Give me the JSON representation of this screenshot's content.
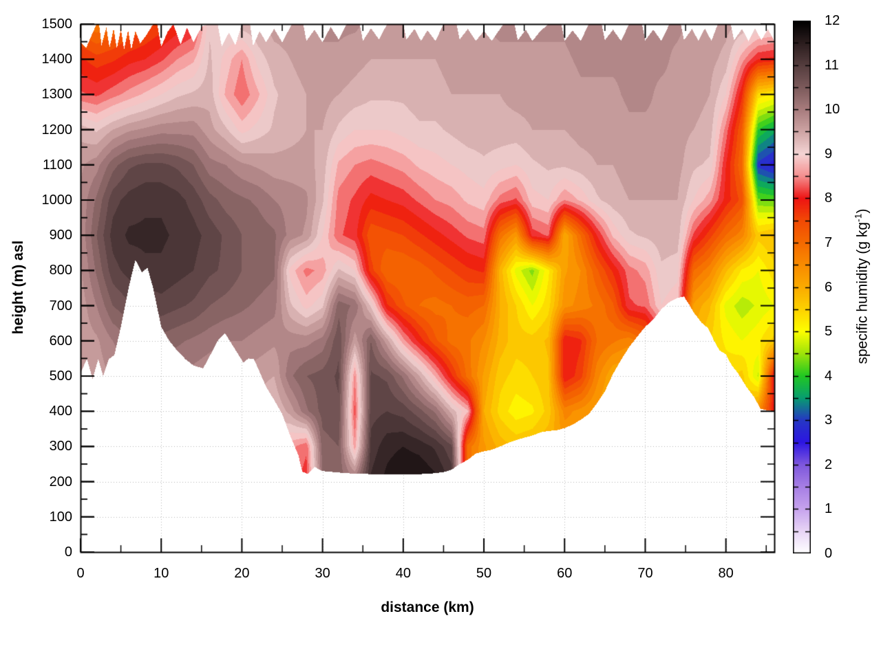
{
  "figure": {
    "background": "#ffffff"
  },
  "axes": {
    "x": {
      "label": "distance (km)",
      "min": 0,
      "max": 86,
      "major_ticks": [
        0,
        10,
        20,
        30,
        40,
        50,
        60,
        70,
        80
      ],
      "minor_step": 5
    },
    "y": {
      "label": "height (m) asl",
      "min": 0,
      "max": 1500,
      "major_ticks": [
        0,
        100,
        200,
        300,
        400,
        500,
        600,
        700,
        800,
        900,
        1000,
        1100,
        1200,
        1300,
        1400,
        1500
      ],
      "minor_step": 50
    }
  },
  "colorbar": {
    "label_prefix": "specific humidity (g kg",
    "label_sup": "-1",
    "label_suffix": ")",
    "min": 0,
    "max": 12,
    "tick_labels": [
      0,
      1,
      2,
      3,
      4,
      5,
      6,
      7,
      8,
      9,
      10,
      11,
      12
    ],
    "minor_step": 0.5,
    "palette": [
      [
        0,
        "#ffffff"
      ],
      [
        0.5,
        "#e8d5f6"
      ],
      [
        1,
        "#c7a3ee"
      ],
      [
        1.5,
        "#a77fe5"
      ],
      [
        2,
        "#7e57dd"
      ],
      [
        2.5,
        "#2d16e3"
      ],
      [
        3,
        "#2638c4"
      ],
      [
        3.5,
        "#089e70"
      ],
      [
        4,
        "#22c922"
      ],
      [
        4.5,
        "#9fe40a"
      ],
      [
        5,
        "#feff00"
      ],
      [
        5.5,
        "#fdd200"
      ],
      [
        6,
        "#fbab00"
      ],
      [
        6.5,
        "#f98c00"
      ],
      [
        7,
        "#f56a00"
      ],
      [
        7.5,
        "#f24a05"
      ],
      [
        8,
        "#ee1414"
      ],
      [
        8.5,
        "#f59090"
      ],
      [
        9,
        "#f5d5d5"
      ],
      [
        9.5,
        "#cfa5a5"
      ],
      [
        10,
        "#a87d7e"
      ],
      [
        10.5,
        "#7d5b5c"
      ],
      [
        11,
        "#553e3f"
      ],
      [
        11.5,
        "#2c1e1f"
      ],
      [
        12,
        "#000000"
      ]
    ],
    "grid_color": "#b3b3b3"
  },
  "chart_data": {
    "type": "heatmap",
    "title": "",
    "xlabel": "distance (km)",
    "ylabel": "height (m) asl",
    "zlabel": "specific humidity (g kg-1)",
    "units": "g/kg",
    "band_step": 0.25,
    "x_km": [
      0,
      2,
      4,
      6,
      8,
      10,
      12,
      14,
      16,
      18,
      20,
      22,
      24,
      26,
      28,
      30,
      32,
      34,
      36,
      38,
      40,
      42,
      44,
      46,
      48,
      50,
      52,
      54,
      56,
      58,
      60,
      62,
      64,
      66,
      68,
      70,
      72,
      74,
      76,
      78,
      80,
      82,
      84,
      86
    ],
    "heights_m": [
      1500,
      1400,
      1300,
      1200,
      1100,
      1000,
      900,
      800,
      700,
      600,
      500,
      400,
      300,
      200
    ],
    "values": [
      [
        7.0,
        7.8,
        8.3,
        9.4,
        9.7,
        9.8,
        9.8,
        9.7,
        9.6,
        9.6,
        9.5,
        9.5,
        9.5,
        9.5
      ],
      [
        6.8,
        7.6,
        8.2,
        9.2,
        9.9,
        10.3,
        10.5,
        10.3,
        10.0,
        9.7,
        9.6,
        9.6,
        9.6,
        9.6
      ],
      [
        7.0,
        7.7,
        8.4,
        9.5,
        10.4,
        10.9,
        11.1,
        10.9,
        10.5,
        10.0,
        9.8,
        9.8,
        9.8,
        9.8
      ],
      [
        7.2,
        7.9,
        8.6,
        9.7,
        10.7,
        11.1,
        11.3,
        11.1,
        10.7,
        10.2,
        9.9,
        9.9,
        9.9,
        9.9
      ],
      [
        7.4,
        8.0,
        8.8,
        9.8,
        10.8,
        11.2,
        11.3,
        11.2,
        10.8,
        10.3,
        10.0,
        10.0,
        10.0,
        10.0
      ],
      [
        7.6,
        8.2,
        9.0,
        9.9,
        10.8,
        11.2,
        11.3,
        11.2,
        10.9,
        10.4,
        10.1,
        10.1,
        10.1,
        10.1
      ],
      [
        7.8,
        8.5,
        9.2,
        9.9,
        10.7,
        11.1,
        11.2,
        11.1,
        10.8,
        10.3,
        10.0,
        10.0,
        10.0,
        10.0
      ],
      [
        8.0,
        8.7,
        9.3,
        9.9,
        10.5,
        10.9,
        11.1,
        11.0,
        10.7,
        10.2,
        9.9,
        9.9,
        9.9,
        9.9
      ],
      [
        9.2,
        9.3,
        9.4,
        9.6,
        10.1,
        10.6,
        10.9,
        10.8,
        10.5,
        10.1,
        9.8,
        9.8,
        9.8,
        9.8
      ],
      [
        9.3,
        8.9,
        8.7,
        9.3,
        10.0,
        10.4,
        10.7,
        10.7,
        10.4,
        10.0,
        9.7,
        9.7,
        9.7,
        9.7
      ],
      [
        9.4,
        8.5,
        8.3,
        8.9,
        9.8,
        10.3,
        10.5,
        10.5,
        10.3,
        10.0,
        9.7,
        9.7,
        9.7,
        9.7
      ],
      [
        9.5,
        9.1,
        8.7,
        9.1,
        9.7,
        10.2,
        10.4,
        10.4,
        10.2,
        9.9,
        9.6,
        9.4,
        9.4,
        9.4
      ],
      [
        9.6,
        9.4,
        9.2,
        9.3,
        9.6,
        10.0,
        10.3,
        10.3,
        10.1,
        9.8,
        9.5,
        9.2,
        9.2,
        9.2
      ],
      [
        9.6,
        9.5,
        9.4,
        9.4,
        9.6,
        9.9,
        9.9,
        8.9,
        9.3,
        9.9,
        10.2,
        9.6,
        8.6,
        8.4
      ],
      [
        9.7,
        9.6,
        9.5,
        9.5,
        9.6,
        9.8,
        9.7,
        8.4,
        8.9,
        9.9,
        10.5,
        10.2,
        8.3,
        8.1
      ],
      [
        9.8,
        9.7,
        9.6,
        9.5,
        9.4,
        9.3,
        9.0,
        8.6,
        9.2,
        10.1,
        10.6,
        10.6,
        10.4,
        10.2
      ],
      [
        9.8,
        9.7,
        9.5,
        9.2,
        8.7,
        8.4,
        8.3,
        9.3,
        10.4,
        10.7,
        10.8,
        10.7,
        10.5,
        10.4
      ],
      [
        9.8,
        9.6,
        9.4,
        9.0,
        8.5,
        8.2,
        8.1,
        9.0,
        10.2,
        9.6,
        8.5,
        8.2,
        8.6,
        10.2
      ],
      [
        9.7,
        9.5,
        9.3,
        9.0,
        8.4,
        7.9,
        7.3,
        7.6,
        9.2,
        10.5,
        10.8,
        10.9,
        11.1,
        11.3
      ],
      [
        9.7,
        9.5,
        9.3,
        9.0,
        8.5,
        8.0,
        7.4,
        7.0,
        7.8,
        9.6,
        10.7,
        11.0,
        11.4,
        11.6
      ],
      [
        9.6,
        9.5,
        9.3,
        9.1,
        8.6,
        8.1,
        7.5,
        7.0,
        7.3,
        8.6,
        10.2,
        10.9,
        11.5,
        11.8
      ],
      [
        9.6,
        9.5,
        9.4,
        9.2,
        8.8,
        8.3,
        7.7,
        7.1,
        7.0,
        7.9,
        9.5,
        10.6,
        11.4,
        11.8
      ],
      [
        9.6,
        9.5,
        9.4,
        9.2,
        8.9,
        8.5,
        7.9,
        7.3,
        6.9,
        7.3,
        8.7,
        10.2,
        11.2,
        11.6
      ],
      [
        9.7,
        9.6,
        9.5,
        9.3,
        9.0,
        8.6,
        8.1,
        7.5,
        7.0,
        6.9,
        7.8,
        9.4,
        10.8,
        11.2
      ],
      [
        9.7,
        9.6,
        9.5,
        9.4,
        9.1,
        8.8,
        8.3,
        7.7,
        7.1,
        6.8,
        6.9,
        8.8,
        6.9,
        6.9
      ],
      [
        9.8,
        9.6,
        9.5,
        9.4,
        9.2,
        8.9,
        8.4,
        7.8,
        7.0,
        6.5,
        6.2,
        6.0,
        6.3,
        6.3
      ],
      [
        9.8,
        9.7,
        9.5,
        9.4,
        9.1,
        8.4,
        6.9,
        5.9,
        6.0,
        5.9,
        5.6,
        5.4,
        5.9,
        5.9
      ],
      [
        9.8,
        9.7,
        9.6,
        9.4,
        9.0,
        8.2,
        6.3,
        4.9,
        5.5,
        5.6,
        5.4,
        5.1,
        5.7,
        5.7
      ],
      [
        9.8,
        9.7,
        9.6,
        9.5,
        9.2,
        8.9,
        8.1,
        4.4,
        5.0,
        5.6,
        5.5,
        5.2,
        5.8,
        5.8
      ],
      [
        9.8,
        9.7,
        9.6,
        9.5,
        9.3,
        9.0,
        8.3,
        5.2,
        5.4,
        5.8,
        5.7,
        5.6,
        6.0,
        6.0
      ],
      [
        9.8,
        9.7,
        9.6,
        9.5,
        9.3,
        8.5,
        6.0,
        6.2,
        6.4,
        8.0,
        8.0,
        6.6,
        6.2,
        6.2
      ],
      [
        9.9,
        9.8,
        9.7,
        9.6,
        9.4,
        8.8,
        7.0,
        6.5,
        6.6,
        7.8,
        7.6,
        6.4,
        6.4,
        6.4
      ],
      [
        9.9,
        9.8,
        9.7,
        9.6,
        9.5,
        9.2,
        8.0,
        7.2,
        6.8,
        7.0,
        6.6,
        6.2,
        6.2,
        6.2
      ],
      [
        9.9,
        9.8,
        9.7,
        9.6,
        9.5,
        9.4,
        8.8,
        7.8,
        7.2,
        6.8,
        6.0,
        5.8,
        5.8,
        5.8
      ],
      [
        9.9,
        9.8,
        9.8,
        9.7,
        9.6,
        9.5,
        9.2,
        8.4,
        8.2,
        6.6,
        5.9,
        5.9,
        5.9,
        5.9
      ],
      [
        9.9,
        9.8,
        9.8,
        9.7,
        9.6,
        9.5,
        9.3,
        8.6,
        8.3,
        7.0,
        6.2,
        6.2,
        6.2,
        6.2
      ],
      [
        9.8,
        9.8,
        9.7,
        9.7,
        9.6,
        9.5,
        9.4,
        9.2,
        9.0,
        8.0,
        7.0,
        7.0,
        7.0,
        7.0
      ],
      [
        9.8,
        9.7,
        9.7,
        9.6,
        9.6,
        9.5,
        9.4,
        9.1,
        8.8,
        8.8,
        8.8,
        8.8,
        8.8,
        8.8
      ],
      [
        9.7,
        9.6,
        9.6,
        9.5,
        9.3,
        9.0,
        8.2,
        7.0,
        6.2,
        5.9,
        5.9,
        5.9,
        5.9,
        5.9
      ],
      [
        9.7,
        9.6,
        9.5,
        9.4,
        9.2,
        8.6,
        7.6,
        6.6,
        5.8,
        5.5,
        5.5,
        5.5,
        5.5,
        5.5
      ],
      [
        9.6,
        9.4,
        9.0,
        8.4,
        8.0,
        7.9,
        7.0,
        5.8,
        4.9,
        5.2,
        5.4,
        5.4,
        5.4,
        5.4
      ],
      [
        9.5,
        8.6,
        7.8,
        7.2,
        7.0,
        7.4,
        6.6,
        5.2,
        4.6,
        5.0,
        5.6,
        5.6,
        5.6,
        5.6
      ],
      [
        9.3,
        8.0,
        5.4,
        4.0,
        2.9,
        4.3,
        5.6,
        5.0,
        4.8,
        5.2,
        4.7,
        6.5,
        6.5,
        6.5
      ],
      [
        9.2,
        7.9,
        5.2,
        3.6,
        2.6,
        4.2,
        5.8,
        5.4,
        5.0,
        5.6,
        8.2,
        8.0,
        8.0,
        8.0
      ]
    ],
    "terrain_profile": [
      [
        0,
        510
      ],
      [
        0.8,
        548
      ],
      [
        1.5,
        492
      ],
      [
        2.2,
        548
      ],
      [
        2.8,
        500
      ],
      [
        3.5,
        548
      ],
      [
        4.2,
        560
      ],
      [
        5,
        640
      ],
      [
        6,
        755
      ],
      [
        6.8,
        830
      ],
      [
        7.6,
        795
      ],
      [
        8.3,
        808
      ],
      [
        9,
        750
      ],
      [
        10,
        640
      ],
      [
        11,
        600
      ],
      [
        12,
        572
      ],
      [
        13,
        548
      ],
      [
        14,
        530
      ],
      [
        15.2,
        522
      ],
      [
        16,
        556
      ],
      [
        17,
        600
      ],
      [
        17.9,
        622
      ],
      [
        19,
        582
      ],
      [
        20.2,
        538
      ],
      [
        20.8,
        550
      ],
      [
        21.5,
        548
      ],
      [
        22,
        522
      ],
      [
        23,
        470
      ],
      [
        24,
        432
      ],
      [
        25,
        392
      ],
      [
        26,
        330
      ],
      [
        27,
        275
      ],
      [
        27.5,
        228
      ],
      [
        28.2,
        222
      ],
      [
        29,
        242
      ],
      [
        30,
        230
      ],
      [
        31,
        228
      ],
      [
        33,
        224
      ],
      [
        35,
        222
      ],
      [
        37,
        221
      ],
      [
        39,
        220
      ],
      [
        41,
        221
      ],
      [
        43,
        222
      ],
      [
        45,
        227
      ],
      [
        46,
        234
      ],
      [
        47,
        250
      ],
      [
        48,
        262
      ],
      [
        49,
        280
      ],
      [
        50,
        286
      ],
      [
        51,
        291
      ],
      [
        52,
        300
      ],
      [
        53,
        310
      ],
      [
        54,
        318
      ],
      [
        55,
        325
      ],
      [
        56,
        331
      ],
      [
        57,
        340
      ],
      [
        58,
        344
      ],
      [
        59,
        346
      ],
      [
        60,
        352
      ],
      [
        61,
        362
      ],
      [
        62,
        376
      ],
      [
        63,
        392
      ],
      [
        64,
        422
      ],
      [
        65,
        457
      ],
      [
        66,
        506
      ],
      [
        67,
        546
      ],
      [
        68,
        582
      ],
      [
        69,
        612
      ],
      [
        70,
        640
      ],
      [
        71,
        661
      ],
      [
        72,
        690
      ],
      [
        73,
        710
      ],
      [
        74,
        722
      ],
      [
        74.8,
        726
      ],
      [
        75.5,
        701
      ],
      [
        76,
        681
      ],
      [
        77,
        651
      ],
      [
        77.8,
        636
      ],
      [
        78.5,
        602
      ],
      [
        79.2,
        573
      ],
      [
        80,
        562
      ],
      [
        80.7,
        531
      ],
      [
        81.5,
        508
      ],
      [
        82.5,
        471
      ],
      [
        83.5,
        440
      ],
      [
        84.3,
        407
      ],
      [
        85,
        403
      ],
      [
        86,
        400
      ]
    ],
    "top_profile": [
      [
        0,
        1448
      ],
      [
        0.7,
        1432
      ],
      [
        1.4,
        1470
      ],
      [
        2,
        1500
      ],
      [
        2.3,
        1500
      ],
      [
        2.6,
        1440
      ],
      [
        3.2,
        1490
      ],
      [
        3.6,
        1432
      ],
      [
        4.1,
        1488
      ],
      [
        4.5,
        1430
      ],
      [
        5,
        1485
      ],
      [
        5.4,
        1428
      ],
      [
        5.9,
        1483
      ],
      [
        6.3,
        1428
      ],
      [
        6.8,
        1480
      ],
      [
        7.4,
        1445
      ],
      [
        8.2,
        1470
      ],
      [
        9,
        1500
      ],
      [
        9.5,
        1500
      ],
      [
        10,
        1436
      ],
      [
        10.8,
        1478
      ],
      [
        11.5,
        1500
      ],
      [
        12.4,
        1442
      ],
      [
        13.2,
        1490
      ],
      [
        14,
        1448
      ],
      [
        15,
        1492
      ],
      [
        15.8,
        1500
      ],
      [
        17,
        1500
      ],
      [
        17.5,
        1436
      ],
      [
        18.4,
        1476
      ],
      [
        19.2,
        1440
      ],
      [
        20,
        1500
      ],
      [
        21,
        1500
      ],
      [
        21.4,
        1438
      ],
      [
        22.2,
        1480
      ],
      [
        23,
        1448
      ],
      [
        24,
        1486
      ],
      [
        25,
        1448
      ],
      [
        26.2,
        1500
      ],
      [
        27.6,
        1500
      ],
      [
        28,
        1452
      ],
      [
        29,
        1484
      ],
      [
        30,
        1448
      ],
      [
        31,
        1492
      ],
      [
        32,
        1456
      ],
      [
        33,
        1500
      ],
      [
        34.6,
        1500
      ],
      [
        35,
        1452
      ],
      [
        36,
        1488
      ],
      [
        37,
        1456
      ],
      [
        38,
        1500
      ],
      [
        40,
        1500
      ],
      [
        40.4,
        1456
      ],
      [
        41.4,
        1486
      ],
      [
        42.2,
        1452
      ],
      [
        43,
        1482
      ],
      [
        44,
        1452
      ],
      [
        45,
        1500
      ],
      [
        46.6,
        1500
      ],
      [
        47,
        1456
      ],
      [
        48,
        1486
      ],
      [
        49,
        1452
      ],
      [
        50,
        1480
      ],
      [
        51,
        1452
      ],
      [
        52.4,
        1500
      ],
      [
        53.8,
        1500
      ],
      [
        54.2,
        1454
      ],
      [
        55.2,
        1484
      ],
      [
        56,
        1452
      ],
      [
        57,
        1480
      ],
      [
        58,
        1500
      ],
      [
        59.6,
        1500
      ],
      [
        60,
        1452
      ],
      [
        61,
        1482
      ],
      [
        62,
        1452
      ],
      [
        63,
        1500
      ],
      [
        64.6,
        1500
      ],
      [
        65,
        1454
      ],
      [
        66,
        1484
      ],
      [
        67,
        1452
      ],
      [
        68,
        1500
      ],
      [
        69.6,
        1500
      ],
      [
        70,
        1454
      ],
      [
        71,
        1484
      ],
      [
        72,
        1452
      ],
      [
        73,
        1500
      ],
      [
        74.4,
        1500
      ],
      [
        74.8,
        1454
      ],
      [
        75.8,
        1486
      ],
      [
        76.6,
        1452
      ],
      [
        77.4,
        1488
      ],
      [
        78.2,
        1452
      ],
      [
        79,
        1500
      ],
      [
        80.6,
        1500
      ],
      [
        81,
        1454
      ],
      [
        82,
        1486
      ],
      [
        82.8,
        1452
      ],
      [
        83.6,
        1488
      ],
      [
        84.4,
        1454
      ],
      [
        85.2,
        1486
      ],
      [
        86,
        1452
      ]
    ]
  }
}
